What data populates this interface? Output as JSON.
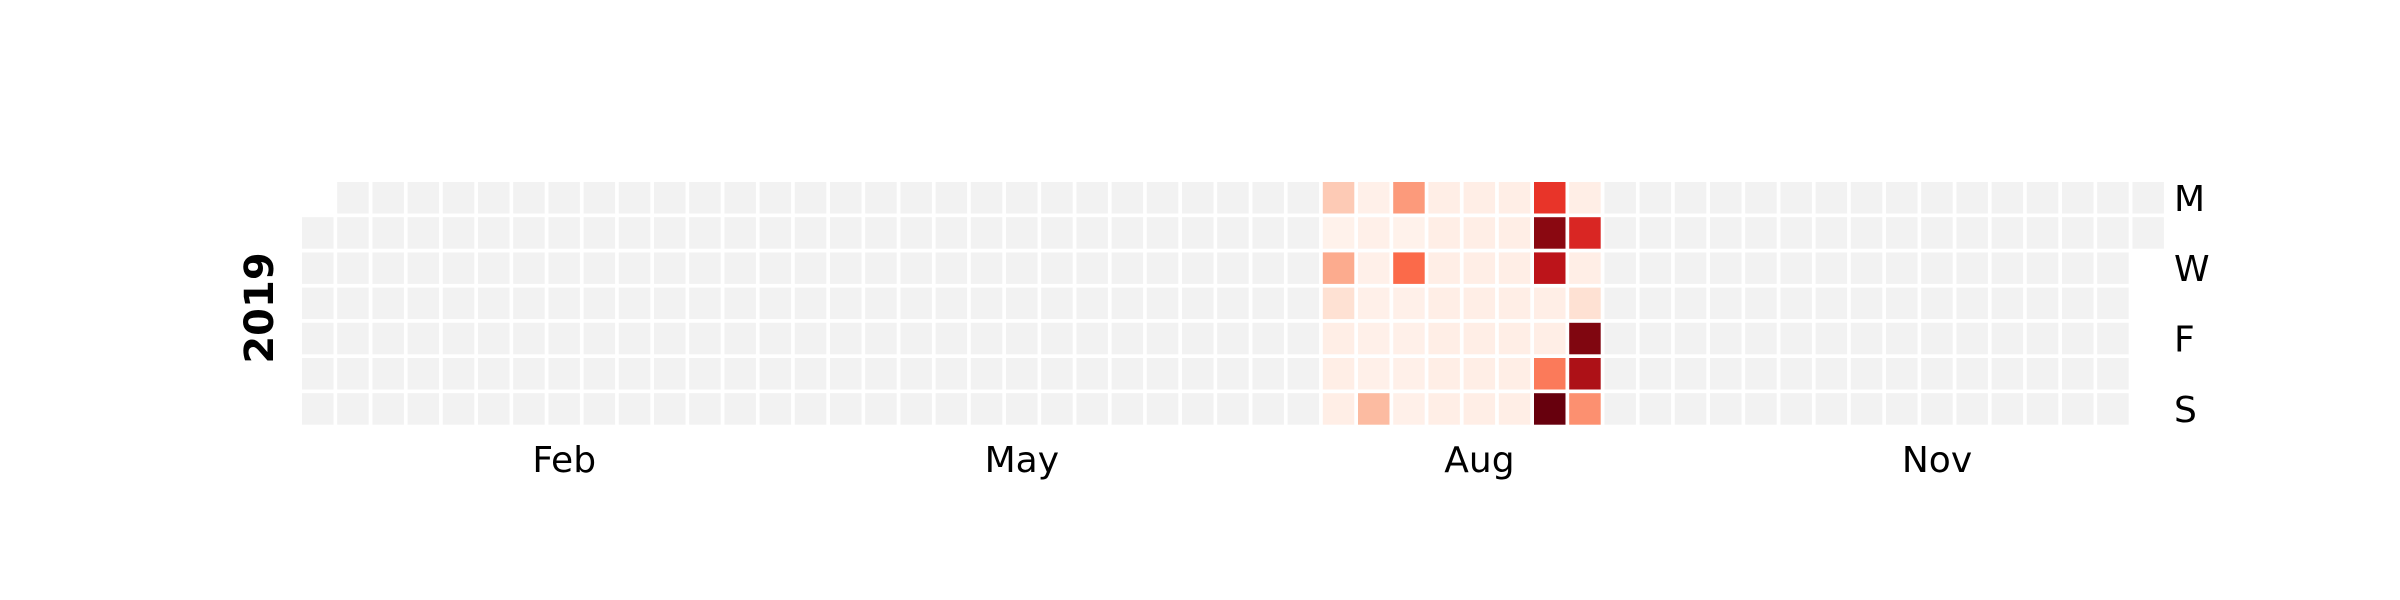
{
  "chart_data": {
    "type": "heatmap",
    "title": "",
    "year_label": "2019",
    "month_labels": [
      {
        "label": "Feb",
        "week": 7
      },
      {
        "label": "May",
        "week": 20
      },
      {
        "label": "Aug",
        "week": 33
      },
      {
        "label": "Nov",
        "week": 46
      }
    ],
    "day_labels": [
      {
        "label": "M",
        "day": 0
      },
      {
        "label": "W",
        "day": 2
      },
      {
        "label": "F",
        "day": 4
      },
      {
        "label": "S",
        "day": 6
      }
    ],
    "weeks": 53,
    "days": 7,
    "first_day_offset": 1,
    "last_day_index": 1,
    "colormap": "Reds",
    "empty_color": "#f2f2f2",
    "grid_gap_color": "#ffffff",
    "legend": "none",
    "grid": false,
    "cells": [
      [
        0,
        29,
        0.2
      ],
      [
        1,
        29,
        0.02
      ],
      [
        2,
        29,
        0.3
      ],
      [
        3,
        29,
        0.12
      ],
      [
        4,
        29,
        0.04
      ],
      [
        5,
        29,
        0.04
      ],
      [
        6,
        29,
        0.04
      ],
      [
        0,
        30,
        0.03
      ],
      [
        1,
        30,
        0.03
      ],
      [
        2,
        30,
        0.03
      ],
      [
        3,
        30,
        0.03
      ],
      [
        4,
        30,
        0.03
      ],
      [
        5,
        30,
        0.03
      ],
      [
        6,
        30,
        0.25
      ],
      [
        0,
        31,
        0.35
      ],
      [
        1,
        31,
        0.02
      ],
      [
        2,
        31,
        0.5
      ],
      [
        3,
        31,
        0.03
      ],
      [
        4,
        31,
        0.03
      ],
      [
        5,
        31,
        0.03
      ],
      [
        6,
        31,
        0.03
      ],
      [
        0,
        32,
        0.04
      ],
      [
        1,
        32,
        0.04
      ],
      [
        2,
        32,
        0.04
      ],
      [
        3,
        32,
        0.04
      ],
      [
        4,
        32,
        0.04
      ],
      [
        5,
        32,
        0.04
      ],
      [
        6,
        32,
        0.04
      ],
      [
        0,
        33,
        0.04
      ],
      [
        1,
        33,
        0.04
      ],
      [
        2,
        33,
        0.04
      ],
      [
        3,
        33,
        0.04
      ],
      [
        4,
        33,
        0.04
      ],
      [
        5,
        33,
        0.04
      ],
      [
        6,
        33,
        0.04
      ],
      [
        0,
        34,
        0.04
      ],
      [
        1,
        34,
        0.04
      ],
      [
        2,
        34,
        0.04
      ],
      [
        3,
        34,
        0.04
      ],
      [
        4,
        34,
        0.04
      ],
      [
        5,
        34,
        0.04
      ],
      [
        6,
        34,
        0.04
      ],
      [
        0,
        35,
        0.65
      ],
      [
        1,
        35,
        0.93
      ],
      [
        2,
        35,
        0.8
      ],
      [
        3,
        35,
        0.04
      ],
      [
        4,
        35,
        0.04
      ],
      [
        5,
        35,
        0.45
      ],
      [
        6,
        35,
        1.0
      ],
      [
        0,
        36,
        0.04
      ],
      [
        1,
        36,
        0.7
      ],
      [
        2,
        36,
        0.04
      ],
      [
        3,
        36,
        0.12
      ],
      [
        4,
        36,
        0.95
      ],
      [
        5,
        36,
        0.85
      ],
      [
        6,
        36,
        0.38
      ]
    ]
  }
}
